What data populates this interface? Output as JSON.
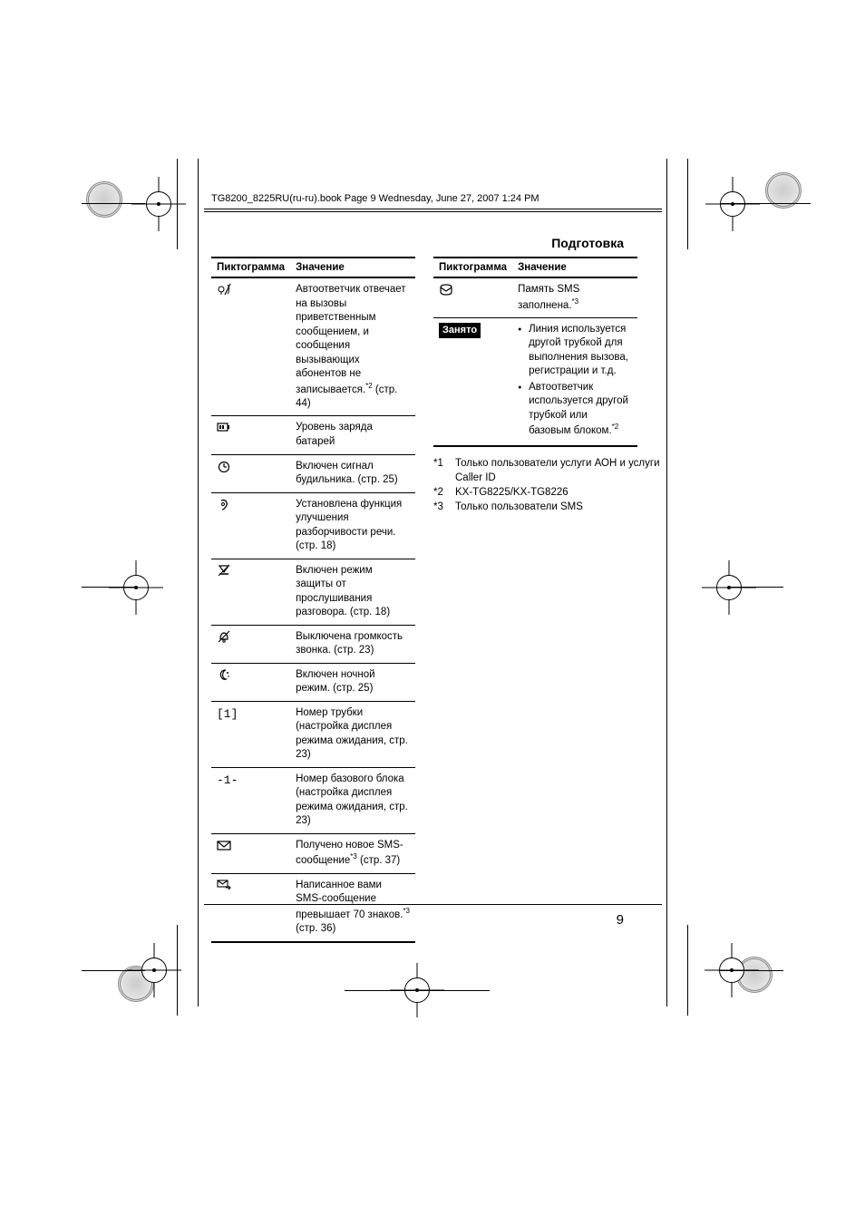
{
  "header_text": "TG8200_8225RU(ru-ru).book  Page 9  Wednesday, June 27, 2007  1:24 PM",
  "section_title": "Подготовка",
  "page_number": "9",
  "table_headers": {
    "icon": "Пиктограмма",
    "meaning": "Значение"
  },
  "left_rows": [
    {
      "icon_type": "mic-slash",
      "text": "Автоответчик отвечает на вызовы приветственным сообщением, и сообщения вызывающих абонентов не записывается.",
      "sup": "*2",
      "tail": " (стр. 44)"
    },
    {
      "icon_type": "battery",
      "text": "Уровень заряда батарей"
    },
    {
      "icon_type": "alarm",
      "text": "Включен сигнал будильника. (стр. 25)"
    },
    {
      "icon_type": "ear",
      "text": "Установлена функция улучшения разборчивости речи. (стр. 18)"
    },
    {
      "icon_type": "nolisten",
      "text": "Включен режим защиты от прослушивания разговора. (стр. 18)"
    },
    {
      "icon_type": "bell-off",
      "text": "Выключена громкость звонка. (стр. 23)"
    },
    {
      "icon_type": "moon",
      "text": "Включен ночной режим. (стр. 25)"
    },
    {
      "icon_type": "text",
      "icon_text": "[1]",
      "text": "Номер трубки (настройка дисплея режима ожидания, стр. 23)"
    },
    {
      "icon_type": "text",
      "icon_text": "-1-",
      "text": "Номер базового блока (настройка дисплея режима ожидания, стр. 23)"
    },
    {
      "icon_type": "envelope",
      "text": "Получено новое SMS-сообщение",
      "sup": "*3",
      "tail": " (стр. 37)"
    },
    {
      "icon_type": "env-arrow",
      "text": "Написанное вами SMS-сообщение превышает 70 знаков.",
      "sup": "*3",
      "tail": " (стр. 36)"
    }
  ],
  "right_rows": [
    {
      "icon_type": "env-round",
      "text": "Память SMS заполнена.",
      "sup": "*3"
    },
    {
      "icon_type": "badge",
      "icon_text": "Занято",
      "bullets": [
        "Линия используется другой трубкой для выполнения вызова, регистрации и т.д.",
        {
          "text": "Автоответчик используется другой трубкой или базовым блоком.",
          "sup": "*2"
        }
      ]
    }
  ],
  "footnotes": [
    {
      "num": "*1",
      "text": "Только пользователи услуги АОН и услуги Caller ID"
    },
    {
      "num": "*2",
      "text": "KX-TG8225/KX-TG8226"
    },
    {
      "num": "*3",
      "text": "Только пользователи SMS"
    }
  ]
}
